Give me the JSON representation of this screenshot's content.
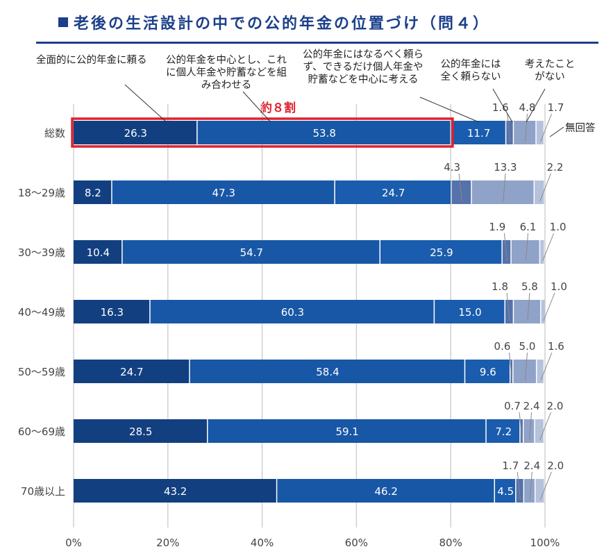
{
  "title": "老後の生活設計の中での公的年金の位置づけ（問４）",
  "highlight_label": "約８割",
  "colors": [
    "#123f80",
    "#1857a6",
    "#1a5cad",
    "#5572ab",
    "#8fa2c8",
    "#b6c2dc"
  ],
  "highlight_color": "#e0202c",
  "chart_data": {
    "type": "bar",
    "orientation": "horizontal",
    "stacked": true,
    "categories": [
      "総数",
      "18〜29歳",
      "30〜39歳",
      "40〜49歳",
      "50〜59歳",
      "60〜69歳",
      "70歳以上"
    ],
    "series": [
      {
        "name": "全面的に公的年金に頼る",
        "values": [
          26.3,
          8.2,
          10.4,
          16.3,
          24.7,
          28.5,
          43.2
        ]
      },
      {
        "name": "公的年金を中心とし、これに個人年金や貯蓄などを組み合わせる",
        "values": [
          53.8,
          47.3,
          54.7,
          60.3,
          58.4,
          59.1,
          46.2
        ]
      },
      {
        "name": "公的年金にはなるべく頼らず、できるだけ個人年金や貯蓄などを中心に考える",
        "values": [
          11.7,
          24.7,
          25.9,
          15.0,
          9.6,
          7.2,
          4.5
        ]
      },
      {
        "name": "公的年金には全く頼らない",
        "values": [
          1.6,
          4.3,
          1.9,
          1.8,
          0.6,
          0.7,
          1.7
        ]
      },
      {
        "name": "考えたことがない",
        "values": [
          4.8,
          13.3,
          6.1,
          5.8,
          5.0,
          2.4,
          2.4
        ]
      },
      {
        "name": "無回答",
        "values": [
          1.7,
          2.2,
          1.0,
          1.0,
          1.6,
          2.0,
          2.0
        ]
      }
    ],
    "xticks": [
      "0%",
      "20%",
      "40%",
      "60%",
      "80%",
      "100%"
    ],
    "xlim": [
      0,
      100
    ],
    "grid": true,
    "legend": "callout labels above top bar"
  }
}
